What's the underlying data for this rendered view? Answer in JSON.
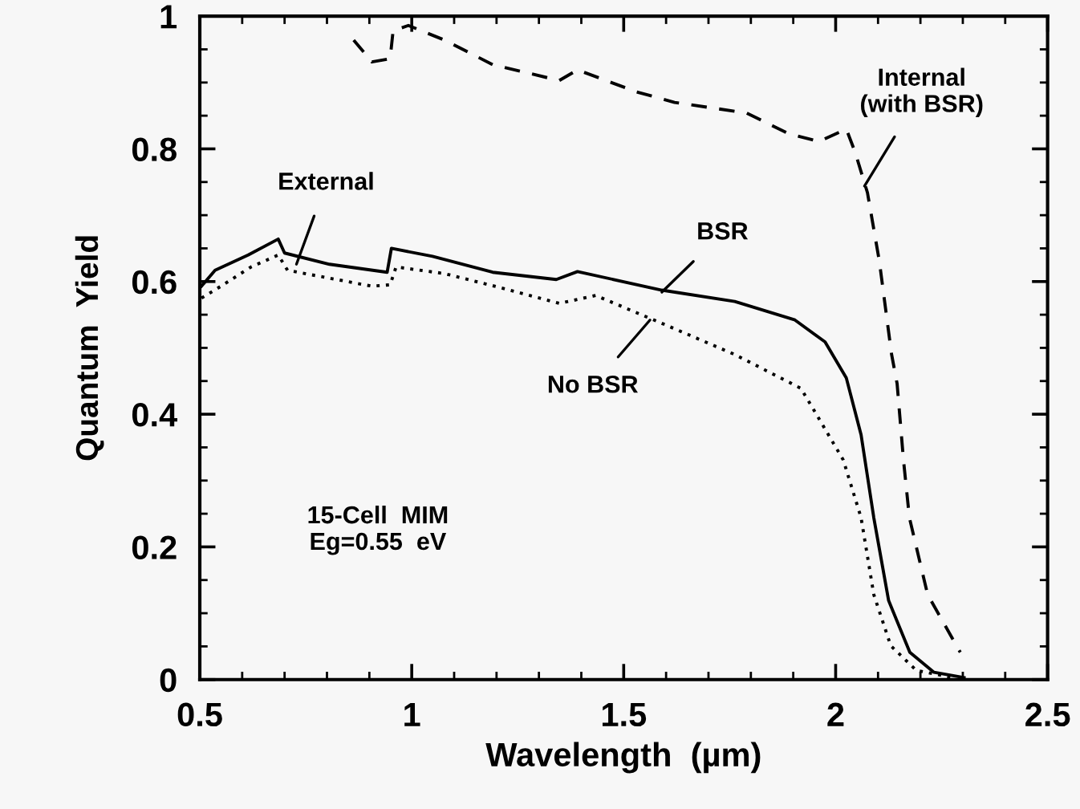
{
  "chart_data": {
    "type": "line",
    "xlabel": "Wavelength  (µm)",
    "ylabel": "Quantum  Yield",
    "xlim": [
      0.5,
      2.5
    ],
    "ylim": [
      0,
      1
    ],
    "xticks": [
      0.5,
      1,
      1.5,
      2,
      2.5
    ],
    "yticks": [
      0,
      0.2,
      0.4,
      0.6,
      0.8,
      1
    ],
    "grid": false,
    "legend": false,
    "marker": "none",
    "series": [
      {
        "color": "#000000",
        "line_style": "solid",
        "x": [
          0.504,
          0.536,
          0.614,
          0.685,
          0.7,
          0.806,
          0.942,
          0.952,
          1.049,
          1.191,
          1.341,
          1.391,
          1.59,
          1.762,
          1.904,
          1.975,
          2.025,
          2.06,
          2.09,
          2.125,
          2.175,
          2.232,
          2.303
        ],
        "values": [
          0.593,
          0.617,
          0.64,
          0.664,
          0.643,
          0.626,
          0.614,
          0.65,
          0.638,
          0.614,
          0.603,
          0.615,
          0.587,
          0.57,
          0.542,
          0.509,
          0.455,
          0.369,
          0.244,
          0.119,
          0.041,
          0.011,
          0.003
        ]
      },
      {
        "color": "#000000",
        "line_style": "dotted",
        "x": [
          0.504,
          0.55,
          0.621,
          0.685,
          0.707,
          0.906,
          0.949,
          0.963,
          1.077,
          1.22,
          1.348,
          1.434,
          1.59,
          1.762,
          1.918,
          1.947,
          2.018,
          2.06,
          2.09,
          2.13,
          2.19,
          2.275
        ],
        "values": [
          0.575,
          0.593,
          0.622,
          0.64,
          0.617,
          0.593,
          0.595,
          0.622,
          0.612,
          0.589,
          0.567,
          0.579,
          0.537,
          0.49,
          0.439,
          0.408,
          0.331,
          0.244,
          0.128,
          0.051,
          0.014,
          0.003
        ]
      },
      {
        "color": "#000000",
        "line_style": "dashed",
        "x": [
          0.863,
          0.906,
          0.949,
          0.956,
          0.992,
          1.077,
          1.191,
          1.348,
          1.391,
          1.53,
          1.62,
          1.79,
          1.889,
          1.961,
          2.025,
          2.046,
          2.075,
          2.103,
          2.132,
          2.145,
          2.16,
          2.174,
          2.217,
          2.294
        ],
        "values": [
          0.964,
          0.931,
          0.936,
          0.978,
          0.986,
          0.964,
          0.927,
          0.903,
          0.919,
          0.886,
          0.87,
          0.854,
          0.823,
          0.811,
          0.83,
          0.795,
          0.734,
          0.631,
          0.49,
          0.446,
          0.331,
          0.244,
          0.128,
          0.041
        ]
      }
    ],
    "annotations": [
      {
        "text": "External",
        "x": 0.728,
        "y": 0.626
      },
      {
        "text": "BSR",
        "x": 1.59,
        "y": 0.584
      },
      {
        "text": "No BSR",
        "x": 1.562,
        "y": 0.542
      },
      {
        "text": "Internal\n(with BSR)",
        "x": 2.068,
        "y": 0.744
      },
      "15-Cell  MIM\nEg=0.55  eV"
    ]
  }
}
